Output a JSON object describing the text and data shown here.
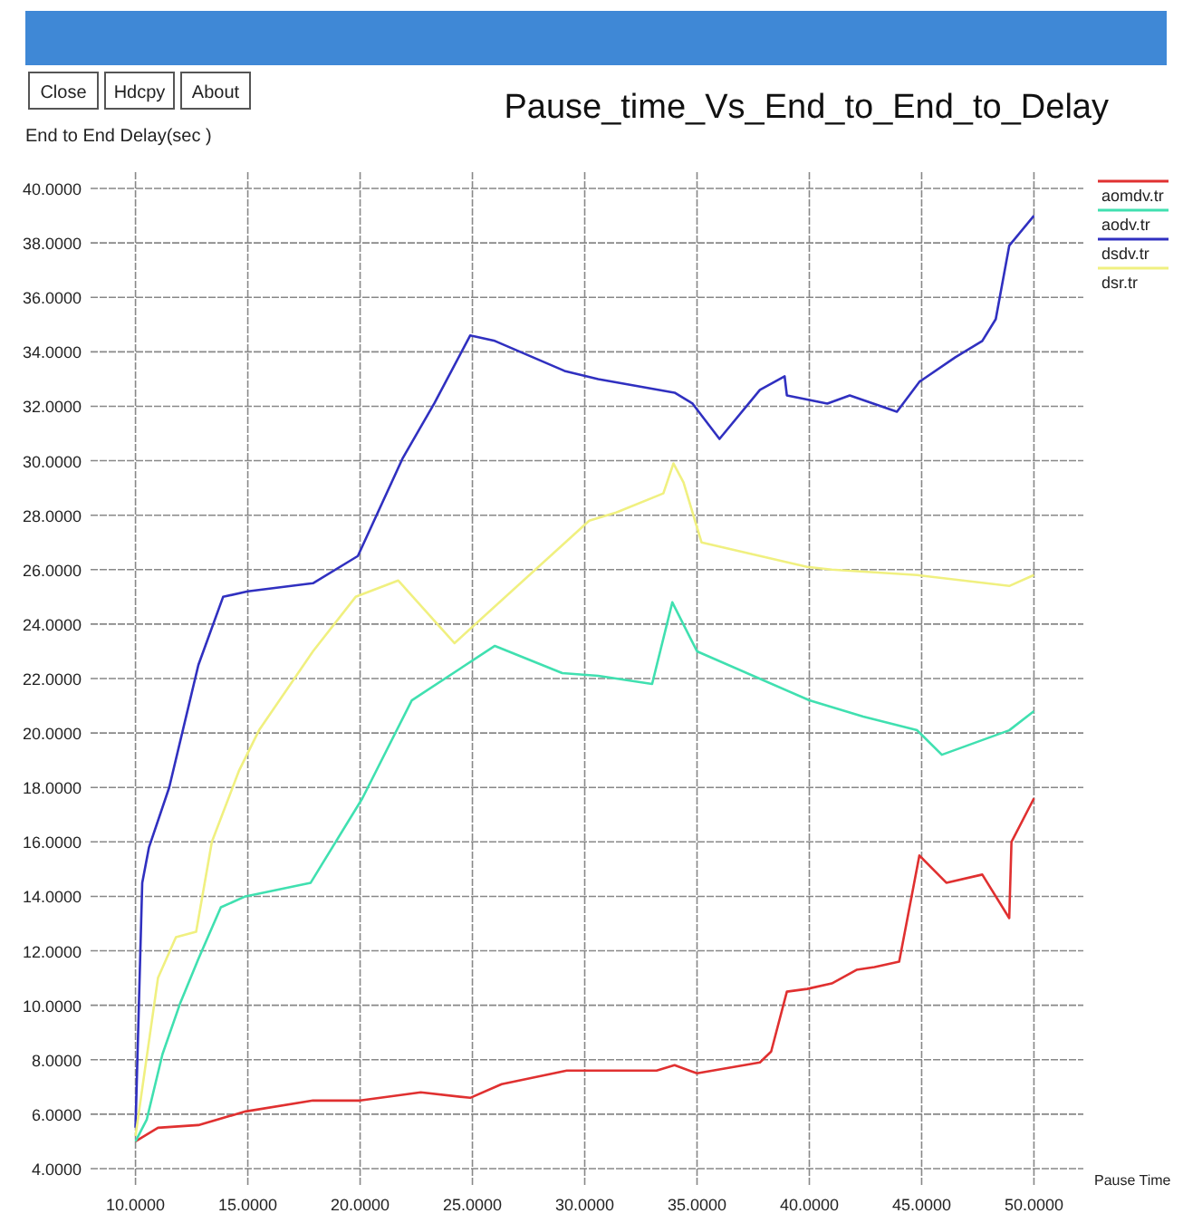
{
  "chart_data": {
    "type": "line",
    "title": "Pause_time_Vs_End_to_End_to_Delay",
    "xlabel": "Pause Time",
    "ylabel": "End to End Delay(sec )",
    "annotations": [
      "Close",
      "Hdcpy",
      "About"
    ],
    "xlim": [
      8,
      52.2
    ],
    "ylim": [
      3.4,
      40.6
    ],
    "xticks": [
      {
        "value": 10,
        "label": "10.0000"
      },
      {
        "value": 15,
        "label": "15.0000"
      },
      {
        "value": 20,
        "label": "20.0000"
      },
      {
        "value": 25,
        "label": "25.0000"
      },
      {
        "value": 30,
        "label": "30.0000"
      },
      {
        "value": 35,
        "label": "35.0000"
      },
      {
        "value": 40,
        "label": "40.0000"
      },
      {
        "value": 45,
        "label": "45.0000"
      },
      {
        "value": 50,
        "label": "50.0000"
      }
    ],
    "yticks": [
      {
        "value": 4,
        "label": "4.0000"
      },
      {
        "value": 6,
        "label": "6.0000"
      },
      {
        "value": 8,
        "label": "8.0000"
      },
      {
        "value": 10,
        "label": "10.0000"
      },
      {
        "value": 12,
        "label": "12.0000"
      },
      {
        "value": 14,
        "label": "14.0000"
      },
      {
        "value": 16,
        "label": "16.0000"
      },
      {
        "value": 18,
        "label": "18.0000"
      },
      {
        "value": 20,
        "label": "20.0000"
      },
      {
        "value": 22,
        "label": "22.0000"
      },
      {
        "value": 24,
        "label": "24.0000"
      },
      {
        "value": 26,
        "label": "26.0000"
      },
      {
        "value": 28,
        "label": "28.0000"
      },
      {
        "value": 30,
        "label": "30.0000"
      },
      {
        "value": 32,
        "label": "32.0000"
      },
      {
        "value": 34,
        "label": "34.0000"
      },
      {
        "value": 36,
        "label": "36.0000"
      },
      {
        "value": 38,
        "label": "38.0000"
      },
      {
        "value": 40,
        "label": "40.0000"
      }
    ],
    "grid": true,
    "legend": "top right",
    "marker": "none",
    "line_style": "solid",
    "series": [
      {
        "name": "aomdv.tr",
        "color": "#e03030",
        "x": [
          10,
          11,
          12.8,
          14.9,
          17.9,
          20,
          22.7,
          24.9,
          26.3,
          29.2,
          33.2,
          34,
          35,
          37.8,
          38.3,
          39,
          39.9,
          41,
          42.1,
          42.9,
          44,
          44.9,
          46.1,
          47.7,
          48.9,
          49,
          50
        ],
        "values": [
          5,
          5.5,
          5.6,
          6.1,
          6.5,
          6.5,
          6.8,
          6.6,
          7.1,
          7.6,
          7.6,
          7.8,
          7.5,
          7.9,
          8.3,
          10.5,
          10.6,
          10.8,
          11.3,
          11.4,
          11.6,
          15.5,
          14.5,
          14.8,
          13.2,
          16,
          17.6
        ]
      },
      {
        "name": "aodv.tr",
        "color": "#40e0b0",
        "x": [
          10,
          10.5,
          11.2,
          12,
          12.8,
          13.8,
          14.9,
          17.8,
          20.1,
          22.3,
          26,
          29,
          30.6,
          33,
          33.9,
          35,
          40,
          42.4,
          44.8,
          45.9,
          48.9,
          50
        ],
        "values": [
          5,
          5.8,
          8.2,
          10.1,
          11.7,
          13.6,
          14,
          14.5,
          17.6,
          21.2,
          23.2,
          22.2,
          22.1,
          21.8,
          24.8,
          23,
          21.2,
          20.6,
          20.1,
          19.2,
          20.1,
          20.8
        ]
      },
      {
        "name": "dsdv.tr",
        "color": "#3030c0",
        "x": [
          10,
          10.3,
          10.6,
          11.5,
          12.8,
          13.9,
          15,
          17.9,
          19.9,
          21.9,
          23.3,
          24.9,
          26,
          29.1,
          30.6,
          34,
          34.8,
          36,
          37.8,
          38.9,
          39,
          40.8,
          41.8,
          43.9,
          44.9,
          46.5,
          47.7,
          48.3,
          48.9,
          50
        ],
        "values": [
          5.5,
          14.5,
          15.8,
          18,
          22.5,
          25,
          25.2,
          25.5,
          26.5,
          30.1,
          32.1,
          34.6,
          34.4,
          33.3,
          33,
          32.5,
          32.1,
          30.8,
          32.6,
          33.1,
          32.4,
          32.1,
          32.4,
          31.8,
          32.9,
          33.8,
          34.4,
          35.2,
          37.9,
          39
        ]
      },
      {
        "name": "dsr.tr",
        "color": "#f0f080",
        "x": [
          10,
          11,
          11.8,
          12.7,
          13.4,
          14.6,
          15.5,
          17.9,
          19.8,
          21.7,
          24.2,
          30.2,
          31.4,
          33.5,
          33.95,
          34.4,
          35.2,
          39.9,
          41,
          44.8,
          48.9,
          50
        ],
        "values": [
          5.2,
          11,
          12.5,
          12.7,
          16,
          18.6,
          20.1,
          23,
          25,
          25.6,
          23.3,
          27.8,
          28.1,
          28.8,
          29.9,
          29.2,
          27,
          26.1,
          26,
          25.8,
          25.4,
          25.8
        ]
      }
    ]
  }
}
